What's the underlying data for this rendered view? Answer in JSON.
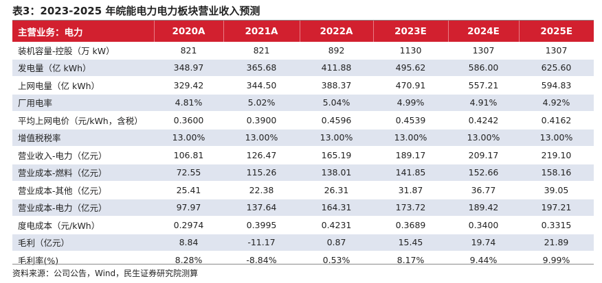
{
  "title": "表3：2023-2025 年皖能电力电力板块营业收入预测",
  "header": [
    "主营业务：电力",
    "2020A",
    "2021A",
    "2022A",
    "2023E",
    "2024E",
    "2025E"
  ],
  "rows": [
    [
      "装机容量-控股（万 kW）",
      "821",
      "821",
      "892",
      "1130",
      "1307",
      "1307"
    ],
    [
      "发电量（亿 kWh）",
      "348.97",
      "365.68",
      "411.88",
      "495.62",
      "586.00",
      "625.60"
    ],
    [
      "上网电量（亿 kWh）",
      "329.42",
      "344.50",
      "388.37",
      "470.91",
      "557.21",
      "594.83"
    ],
    [
      "厂用电率",
      "4.81%",
      "5.02%",
      "5.04%",
      "4.99%",
      "4.91%",
      "4.92%"
    ],
    [
      "平均上网电价（元/kWh，含税）",
      "0.3600",
      "0.3900",
      "0.4596",
      "0.4539",
      "0.4242",
      "0.4162"
    ],
    [
      "增值税税率",
      "13.00%",
      "13.00%",
      "13.00%",
      "13.00%",
      "13.00%",
      "13.00%"
    ],
    [
      "营业收入-电力（亿元）",
      "106.81",
      "126.47",
      "165.19",
      "189.17",
      "209.17",
      "219.10"
    ],
    [
      "营业成本-燃料（亿元）",
      "72.55",
      "115.26",
      "138.01",
      "141.85",
      "152.66",
      "158.16"
    ],
    [
      "营业成本-其他（亿元）",
      "25.41",
      "22.38",
      "26.31",
      "31.87",
      "36.77",
      "39.05"
    ],
    [
      "营业成本-电力（亿元）",
      "97.97",
      "137.64",
      "164.31",
      "173.72",
      "189.42",
      "197.21"
    ],
    [
      "度电成本（元/kWh）",
      "0.2974",
      "0.3995",
      "0.4231",
      "0.3689",
      "0.3400",
      "0.3315"
    ],
    [
      "毛利（亿元）",
      "8.84",
      "-11.17",
      "0.87",
      "15.45",
      "19.74",
      "21.89"
    ],
    [
      "毛利率(%)",
      "8.28%",
      "-8.84%",
      "0.53%",
      "8.17%",
      "9.44%",
      "9.99%"
    ]
  ],
  "source": "资料来源：公司公告，Wind，民生证券研究院测算",
  "colors": {
    "header_bg": "#d2202f",
    "stripe_bg": "#dfe4ef"
  }
}
